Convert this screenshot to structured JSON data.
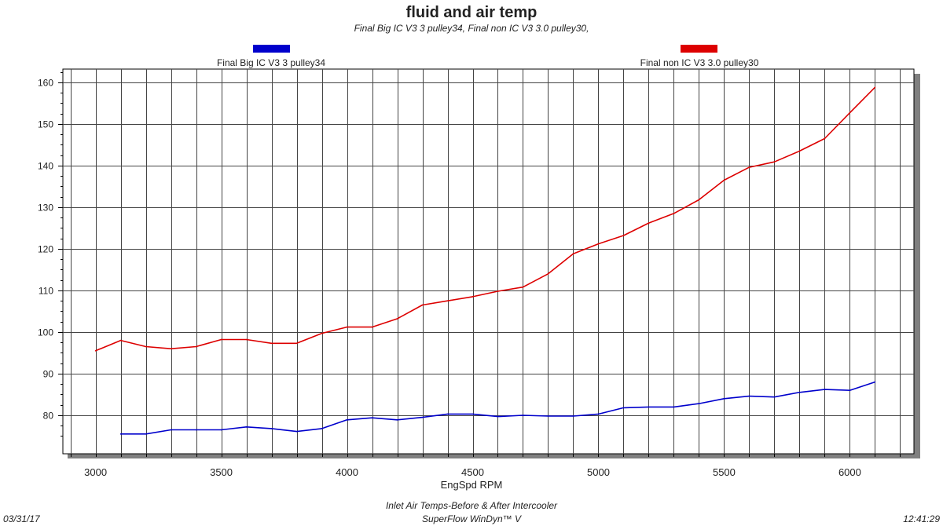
{
  "chart_data": {
    "type": "line",
    "title": "fluid and air temp",
    "subtitle": "Final Big IC V3 3 pulley34, Final non IC V3 3.0 pulley30,",
    "xlabel": "EngSpd RPM",
    "ylabel": "",
    "xlim": [
      2870,
      6255
    ],
    "ylim": [
      70.75,
      163.2
    ],
    "xticks": [
      3000,
      3500,
      4000,
      4500,
      5000,
      5500,
      6000
    ],
    "yticks": [
      80,
      90,
      100,
      110,
      120,
      130,
      140,
      150,
      160
    ],
    "x_grid_step": 100,
    "grid": true,
    "legend_placement": "top",
    "x": [
      3000,
      3100,
      3200,
      3300,
      3400,
      3500,
      3600,
      3700,
      3800,
      3900,
      4000,
      4100,
      4200,
      4300,
      4400,
      4500,
      4600,
      4700,
      4800,
      4900,
      5000,
      5100,
      5200,
      5300,
      5400,
      5500,
      5600,
      5700,
      5800,
      5900,
      6000,
      6100
    ],
    "series": [
      {
        "name": "Final Big IC V3 3 pulley34",
        "color": "#0000cc",
        "values": [
          null,
          75.5,
          75.5,
          76.5,
          76.5,
          76.5,
          77.2,
          76.8,
          76.1,
          76.8,
          78.9,
          79.4,
          78.9,
          79.5,
          80.3,
          80.3,
          79.7,
          80.0,
          79.8,
          79.8,
          80.3,
          81.8,
          82.0,
          82.0,
          82.8,
          84.0,
          84.6,
          84.4,
          85.5,
          86.2,
          86.0,
          88.0
        ]
      },
      {
        "name": "Final non IC V3 3.0 pulley30",
        "color": "#dd0000",
        "values": [
          95.5,
          98.0,
          96.5,
          96.0,
          96.5,
          98.2,
          98.2,
          97.3,
          97.3,
          99.7,
          101.2,
          101.2,
          103.2,
          106.5,
          107.5,
          108.5,
          109.8,
          110.8,
          114.0,
          118.8,
          121.2,
          123.2,
          126.2,
          128.5,
          131.8,
          136.5,
          139.6,
          140.9,
          143.5,
          146.5,
          152.7,
          158.8
        ]
      }
    ]
  },
  "footer": {
    "date": "03/31/17",
    "time": "12:41:29",
    "line1": "Inlet Air Temps-Before & After Intercooler",
    "line2": "SuperFlow WinDyn™ V"
  }
}
